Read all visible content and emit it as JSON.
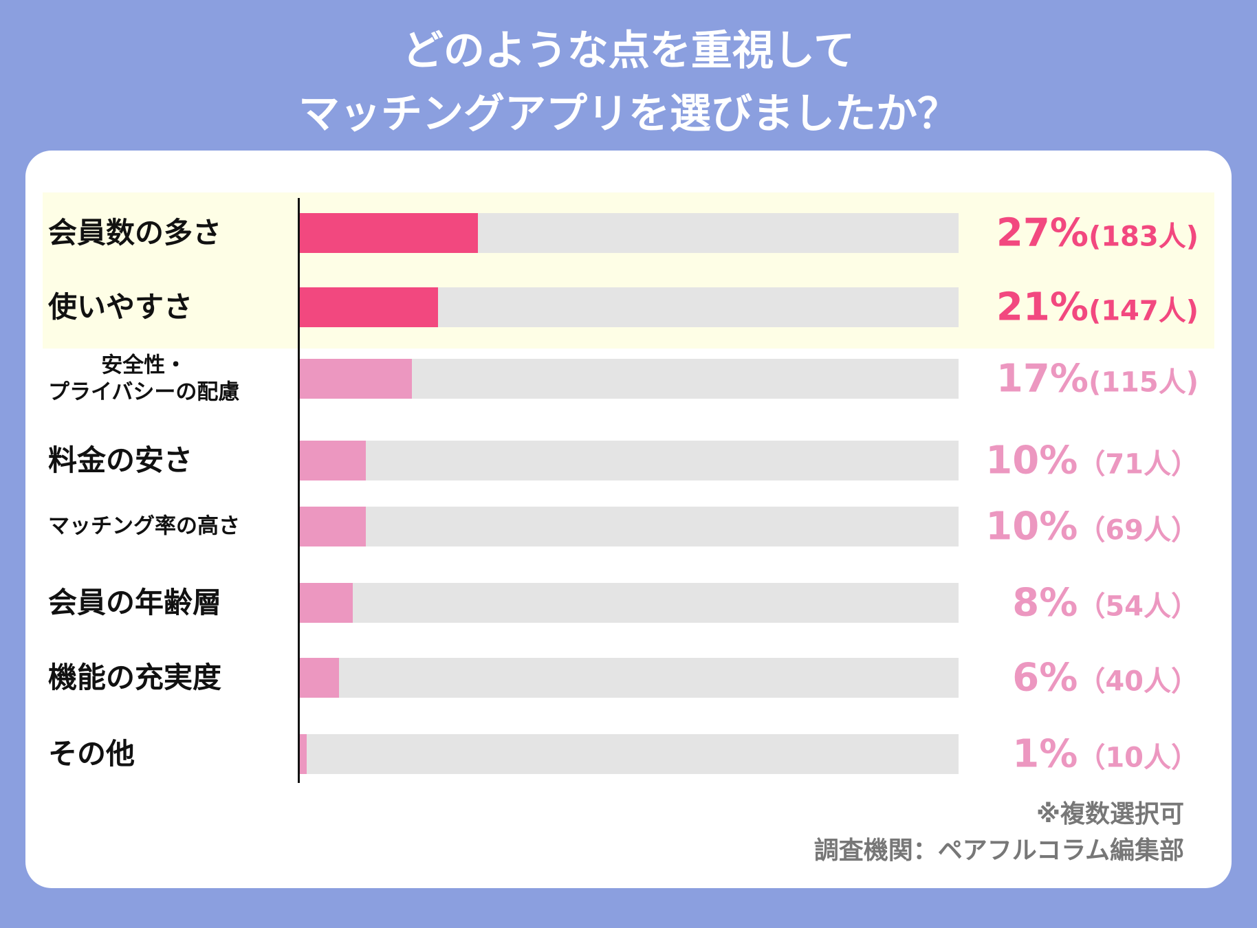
{
  "chart_data": {
    "type": "bar",
    "title": "どのような点を重視して\nマッチングアプリを選びましたか？",
    "categories": [
      "会員数の多さ",
      "使いやすさ",
      "安全性・\nプライバシーの配慮",
      "料金の安さ",
      "マッチング率の高さ",
      "会員の年齢層",
      "機能の充実度",
      "その他"
    ],
    "values": [
      27,
      21,
      17,
      10,
      10,
      8,
      6,
      1
    ],
    "value_labels": [
      "27%",
      "21%",
      "17%",
      "10%",
      "10%",
      "8%",
      "6%",
      "1%"
    ],
    "count_labels": [
      "(183人)",
      "(147人)",
      "(115人)",
      "（71人）",
      "（69人）",
      "（54人）",
      "（40人）",
      "（10人）"
    ],
    "colors": [
      "#f2487f",
      "#f2487f",
      "#ec97c0",
      "#ec97c0",
      "#ec97c0",
      "#ec97c0",
      "#ec97c0",
      "#ec97c0"
    ],
    "xlim": [
      0,
      100
    ],
    "notes": [
      "※複数選択可",
      "調査機関：ペアフルコラム編集部"
    ]
  }
}
